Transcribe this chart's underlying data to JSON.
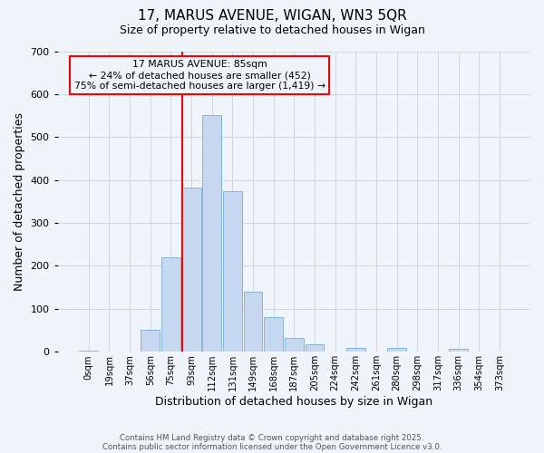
{
  "title1": "17, MARUS AVENUE, WIGAN, WN3 5QR",
  "title2": "Size of property relative to detached houses in Wigan",
  "xlabel": "Distribution of detached houses by size in Wigan",
  "ylabel": "Number of detached properties",
  "bin_labels": [
    "0sqm",
    "19sqm",
    "37sqm",
    "56sqm",
    "75sqm",
    "93sqm",
    "112sqm",
    "131sqm",
    "149sqm",
    "168sqm",
    "187sqm",
    "205sqm",
    "224sqm",
    "242sqm",
    "261sqm",
    "280sqm",
    "298sqm",
    "317sqm",
    "336sqm",
    "354sqm",
    "373sqm"
  ],
  "bar_values": [
    2,
    0,
    0,
    52,
    220,
    383,
    551,
    375,
    140,
    80,
    32,
    18,
    0,
    9,
    0,
    10,
    0,
    0,
    7,
    0,
    0
  ],
  "bar_color": "#c5d8f0",
  "bar_edgecolor": "#7bafd4",
  "vline_color": "red",
  "annotation_title": "17 MARUS AVENUE: 85sqm",
  "annotation_line1": "← 24% of detached houses are smaller (452)",
  "annotation_line2": "75% of semi-detached houses are larger (1,419) →",
  "annotation_box_color": "red",
  "ylim": [
    0,
    700
  ],
  "yticks": [
    0,
    100,
    200,
    300,
    400,
    500,
    600,
    700
  ],
  "footnote1": "Contains HM Land Registry data © Crown copyright and database right 2025.",
  "footnote2": "Contains public sector information licensed under the Open Government Licence v3.0.",
  "bg_color": "#f0f4fb",
  "grid_color": "#d0d8e8"
}
